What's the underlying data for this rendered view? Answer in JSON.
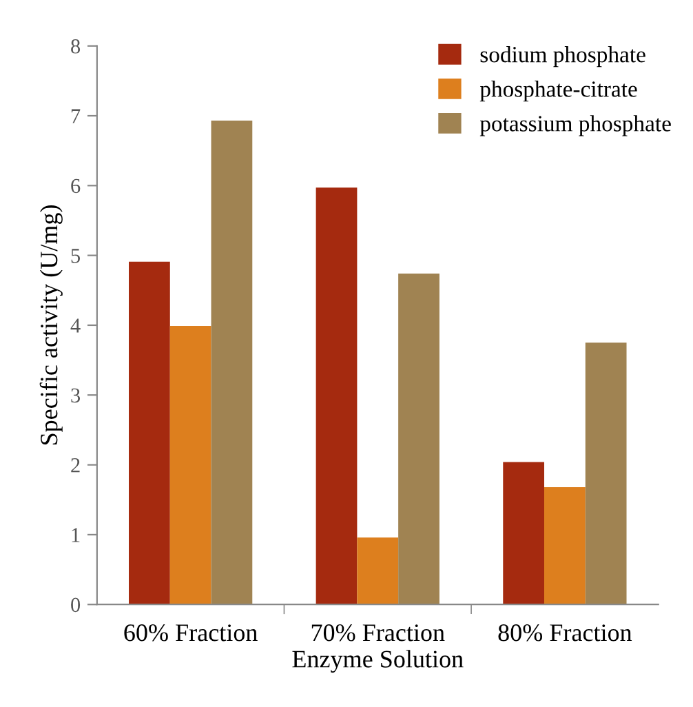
{
  "chart_data": {
    "type": "bar",
    "xlabel": "Enzyme Solution",
    "ylabel": "Specific activity (U/mg)",
    "categories": [
      "60% Fraction",
      "70% Fraction",
      "80% Fraction"
    ],
    "series": [
      {
        "name": "sodium phosphate",
        "color": "#a52a0f",
        "values": [
          4.91,
          5.97,
          2.04
        ]
      },
      {
        "name": "phosphate-citrate",
        "color": "#dd7f1e",
        "values": [
          3.99,
          0.96,
          1.68
        ]
      },
      {
        "name": "potassium phosphate",
        "color": "#a08352",
        "values": [
          6.93,
          4.74,
          3.75
        ]
      }
    ],
    "ylim": [
      0,
      8
    ],
    "yticks": [
      0,
      1,
      2,
      3,
      4,
      5,
      6,
      7,
      8
    ],
    "grid": false,
    "legend": "top right"
  }
}
